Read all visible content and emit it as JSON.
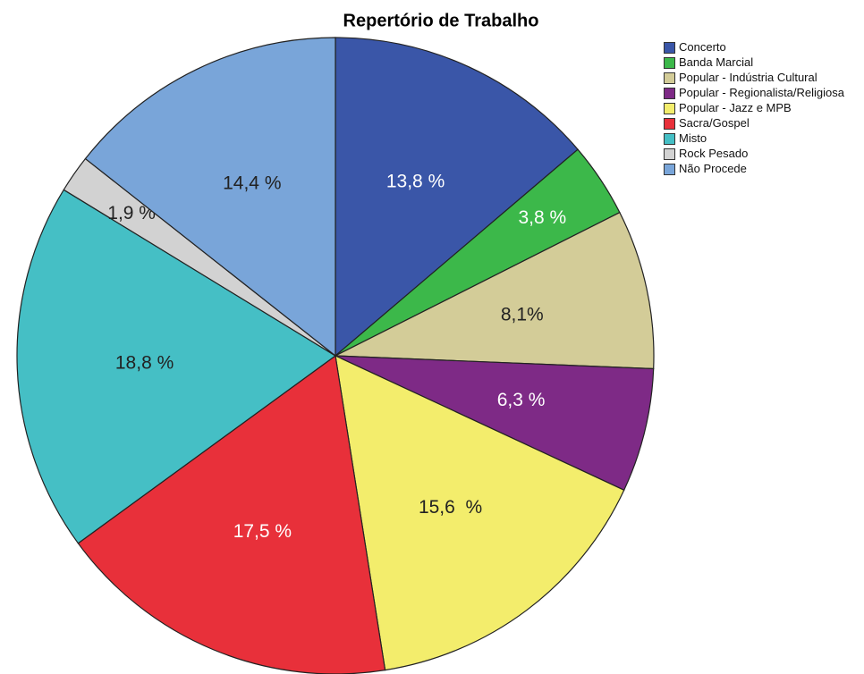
{
  "chart_data": {
    "type": "pie",
    "title": "Repertório de Trabalho",
    "categories": [
      "Concerto",
      "Banda Marcial",
      "Popular - Indústria Cultural",
      "Popular - Regionalista/Religiosa",
      "Popular - Jazz e MPB",
      "Sacra/Gospel",
      "Misto",
      "Rock Pesado",
      "Não Procede"
    ],
    "values": [
      13.8,
      3.8,
      8.1,
      6.3,
      15.6,
      17.5,
      18.8,
      1.9,
      14.4
    ],
    "value_labels": [
      "13,8 %",
      "3,8 %",
      "8,1%",
      "6,3 %",
      "15,6  %",
      "17,5 %",
      "18,8 %",
      "1,9 %",
      "14,4 %"
    ],
    "colors": [
      "#3a56a8",
      "#3cb84a",
      "#d3cc98",
      "#7e2a86",
      "#f3ed6c",
      "#e8303a",
      "#45bfc5",
      "#d2d2d2",
      "#79a5d9"
    ],
    "legend": "right"
  }
}
